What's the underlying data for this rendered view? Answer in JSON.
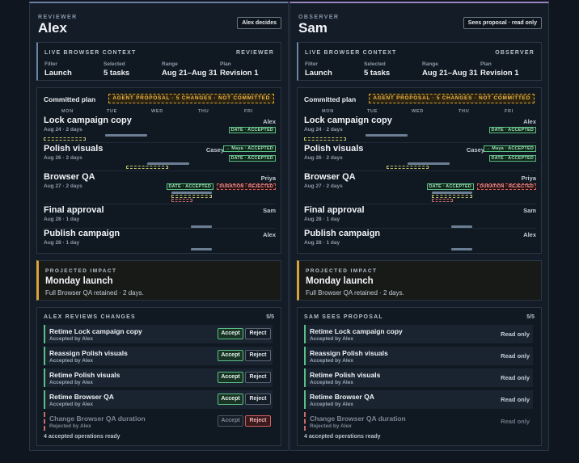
{
  "days": [
    "MON",
    "TUE",
    "WED",
    "THU",
    "FRI"
  ],
  "plan_title": "Committed plan",
  "plan_badge": "AGENT PROPOSAL · 5 CHANGES · NOT COMMITTED",
  "context": {
    "title": "LIVE BROWSER CONTEXT",
    "filter_label": "Filter",
    "filter_value": "Launch",
    "selected_label": "Selected",
    "selected_value": "5 tasks",
    "range_label": "Range",
    "range_value": "Aug 21–Aug 31",
    "plan_label": "Plan",
    "plan_value": "Revision 1"
  },
  "tasks": [
    {
      "name": "Lock campaign copy",
      "sub": "Aug 24 · 2 days",
      "owner": "Alex",
      "chips": [
        "DATE · ACCEPTED"
      ]
    },
    {
      "name": "Polish visuals",
      "sub": "Aug 26 · 2 days",
      "owner": "Casey",
      "chips": [
        "→ Maya · ACCEPTED",
        "DATE · ACCEPTED"
      ]
    },
    {
      "name": "Browser QA",
      "sub": "Aug 27 · 2 days",
      "owner": "Priya",
      "chips": [
        "DATE · ACCEPTED",
        "DURATION · REJECTED"
      ]
    },
    {
      "name": "Final approval",
      "sub": "Aug 28 · 1 day",
      "owner": "Sam"
    },
    {
      "name": "Publish campaign",
      "sub": "Aug 28 · 1 day",
      "owner": "Alex"
    }
  ],
  "impact": {
    "label": "PROJECTED IMPACT",
    "title": "Monday launch",
    "sub": "Full Browser QA retained · 2 days."
  },
  "ops": [
    {
      "title": "Retime Lock campaign copy",
      "sub": "Accepted by Alex"
    },
    {
      "title": "Reassign Polish visuals",
      "sub": "Accepted by Alex"
    },
    {
      "title": "Retime Polish visuals",
      "sub": "Accepted by Alex"
    },
    {
      "title": "Retime Browser QA",
      "sub": "Accepted by Alex"
    },
    {
      "title": "Change Browser QA duration",
      "sub": "Rejected by Alex"
    }
  ],
  "accept_label": "Accept",
  "reject_label": "Reject",
  "read_only_label": "Read only",
  "footer": "4 accepted operations ready",
  "reviewer": {
    "role": "REVIEWER",
    "name": "Alex",
    "badge": "Alex decides",
    "ctx_role": "REVIEWER",
    "review_title": "ALEX REVIEWS CHANGES",
    "count": "5/5"
  },
  "observer": {
    "role": "OBSERVER",
    "name": "Sam",
    "badge": "Sees proposal · read only",
    "ctx_role": "OBSERVER",
    "review_title": "SAM SEES PROPOSAL",
    "count": "5/5"
  },
  "colors": {
    "accepted": "#5bbf86",
    "rejected": "#d06060",
    "proposal": "#d9a53a"
  }
}
